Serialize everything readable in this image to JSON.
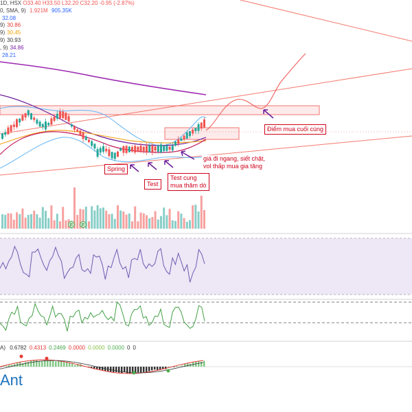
{
  "header": {
    "timeframe": "1D",
    "exchange": "HSX",
    "open_label": "O",
    "open": "33.40",
    "high_label": "H",
    "high": "33.50",
    "low_label": "L",
    "low": "32.20",
    "close_label": "C",
    "close": "32.20",
    "change": "-0.95 (-2.87%)"
  },
  "volume_row": {
    "prefix": "0, SMA, 9)",
    "volume": "1.921M",
    "sma": "905.35K"
  },
  "indicator_rows": [
    {
      "label": "",
      "value": "32.08",
      "color": "#2962ff"
    },
    {
      "label": "9)",
      "value": "30.86",
      "color": "#e53935"
    },
    {
      "label": "9)",
      "value": "30.45",
      "color": "#f0a000"
    },
    {
      "label": "9)",
      "value": "30.93",
      "color": "#333333"
    },
    {
      "label": ", 9)",
      "value": "34.86",
      "color": "#7b1fa2"
    },
    {
      "label": "",
      "value": "28.21",
      "color": "#2962ff"
    }
  ],
  "annotations": {
    "spring": "Spring",
    "test": "Test",
    "test_cung": [
      "Test cung",
      "mua thăm dò"
    ],
    "sideways": [
      "giá đi ngang, siết chặt,",
      "vol thấp mua gia tăng"
    ],
    "last_buy": "Điểm mua cuối cùng"
  },
  "volume_markers": [
    "F",
    "F"
  ],
  "macd_panel": {
    "prefix": "A)",
    "values": [
      "0.6782",
      "0.4313",
      "0.2469",
      "0.0000",
      "0.0000",
      "0.0000",
      "0",
      "0"
    ],
    "colors": [
      "#333333",
      "#e53935",
      "#43a047",
      "#e53935",
      "#8bc34a",
      "#4caf50",
      "#333333",
      "#333333"
    ]
  },
  "brand": "Ant",
  "colors": {
    "up": "#26a69a",
    "down": "#ef5350",
    "annotation": "#d0021b",
    "channel": "#f4796b",
    "ma_purple": "#9c27b0",
    "bollinger": "#64b5f6",
    "ma_orange": "#f5a623",
    "ma_dark": "#6a1b9a",
    "rsi_line": "#6f5bb0",
    "rsi_band": "#ede7f6",
    "stoch_line": "#43a047",
    "arrow": "#6a1b9a"
  },
  "icons": [
    "arrow-up-left-icon"
  ]
}
